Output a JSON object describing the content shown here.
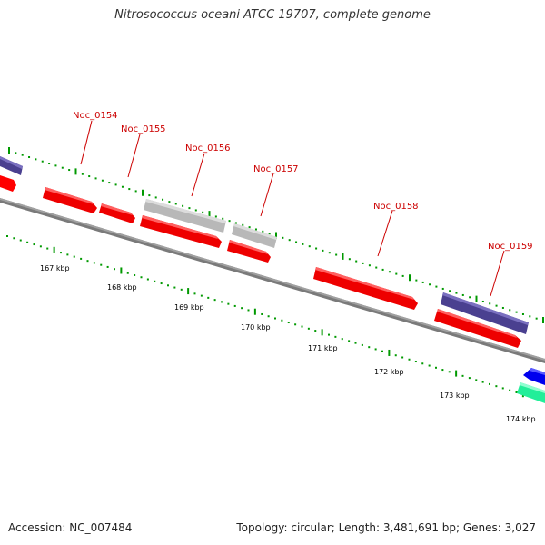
{
  "title": "Nitrosococcus oceani ATCC 19707, complete genome",
  "accession": "Accession: NC_007484",
  "stats": "Topology: circular; Length: 3,481,691 bp; Genes: 3,027",
  "colors": {
    "forward": "#ff0000",
    "other": "#c0c0c0",
    "reverse_purple": "#4a4090",
    "blue": "#0000ee",
    "teal": "#22ee99",
    "backbone": "#808080",
    "ticks": "#009900",
    "label": "#cc0000"
  },
  "scale_labels": [
    "167 kbp",
    "168 kbp",
    "169 kbp",
    "170 kbp",
    "171 kbp",
    "172 kbp",
    "173 kbp",
    "174 kbp"
  ],
  "gene_labels": [
    "Noc_0154",
    "Noc_0155",
    "Noc_0156",
    "Noc_0157",
    "Noc_0158",
    "Noc_0159"
  ]
}
